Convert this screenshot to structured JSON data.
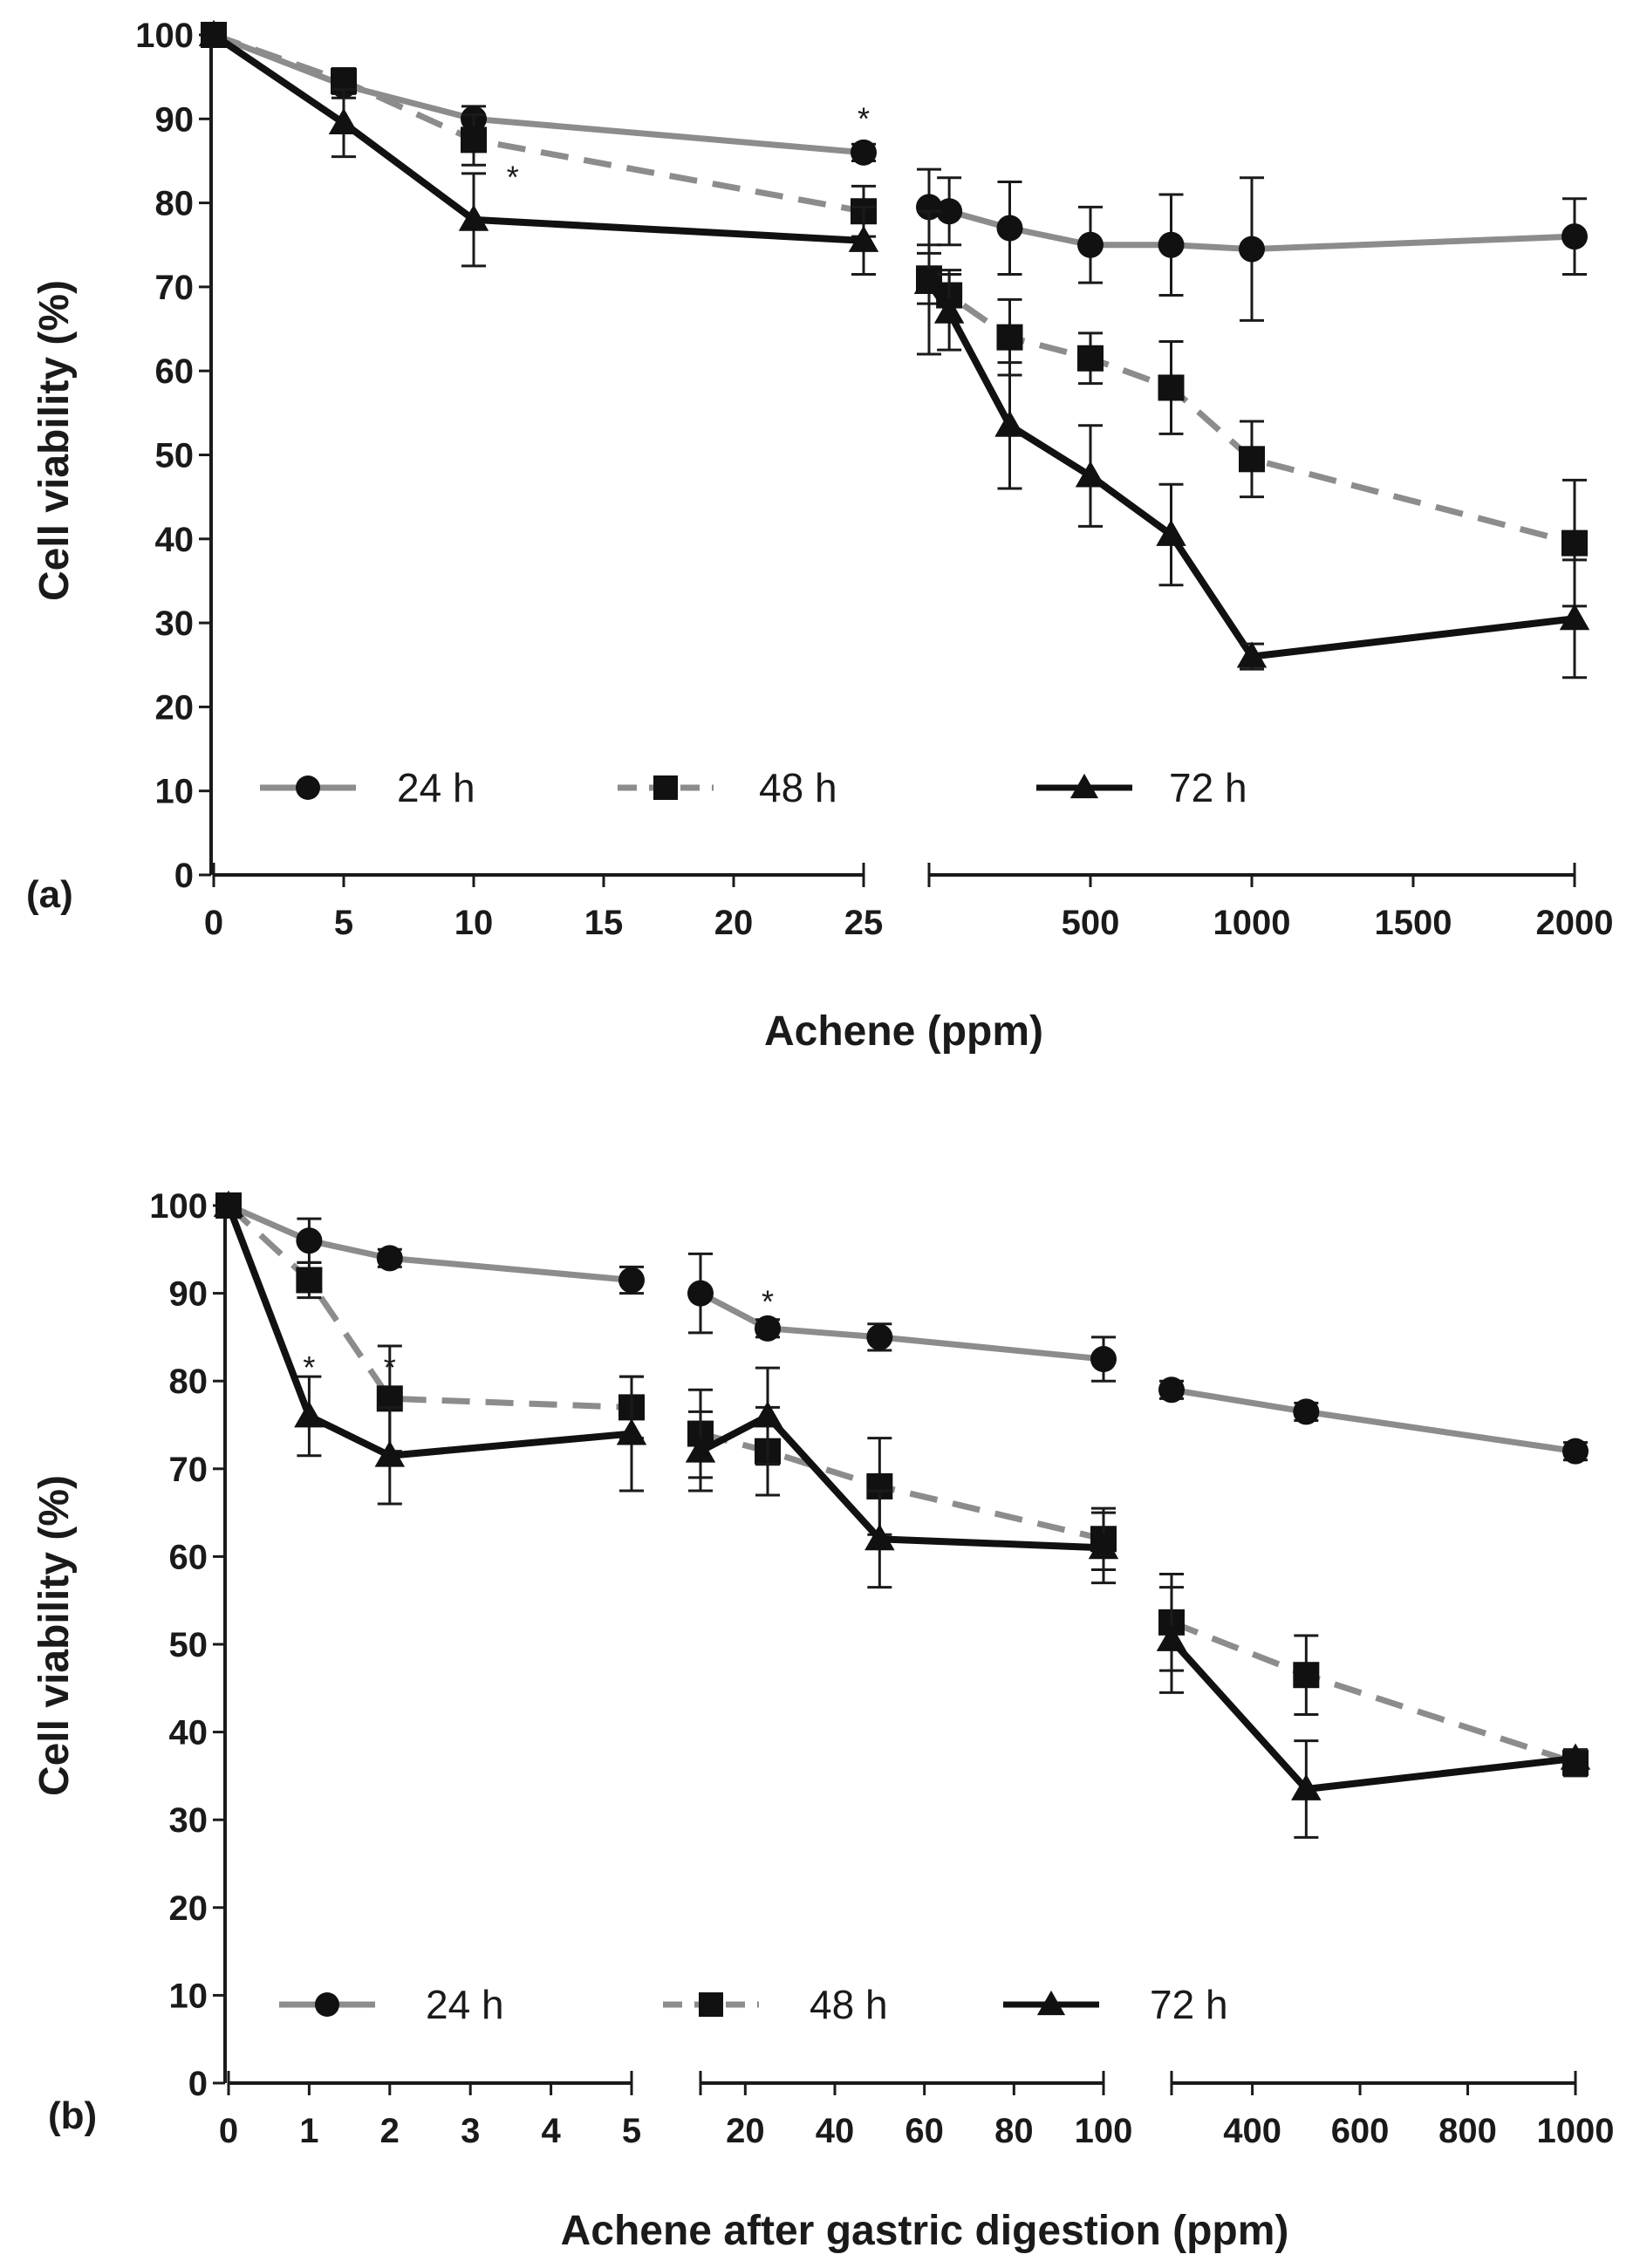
{
  "colors": {
    "s24": "#8c8c8c",
    "s48": "#8c8c8c",
    "s72": "#111111",
    "axis": "#1a1a1a"
  },
  "legend": [
    {
      "key": "s24",
      "label": "24 h",
      "marker": "circle",
      "dash": "solid"
    },
    {
      "key": "s48",
      "label": "48 h",
      "marker": "square",
      "dash": "dashed"
    },
    {
      "key": "s72",
      "label": "72 h",
      "marker": "triangle",
      "dash": "solid"
    }
  ],
  "chart_data": [
    {
      "panel": "(a)",
      "type": "line",
      "ylabel": "Cell viability (%)",
      "xlabel": "Achene (ppm)",
      "ylim": [
        0,
        100
      ],
      "yticks": [
        0,
        10,
        20,
        30,
        40,
        50,
        60,
        70,
        80,
        90,
        100
      ],
      "segments": [
        {
          "xlim": [
            0,
            25
          ],
          "ticks": [
            0,
            5,
            10,
            15,
            20,
            25
          ],
          "tick_labels": [
            "0",
            "5",
            "10",
            "15",
            "20",
            "25"
          ]
        },
        {
          "xlim": [
            0,
            2000
          ],
          "ticks": [
            0,
            500,
            1000,
            1500,
            2000
          ],
          "tick_labels": [
            "",
            "500",
            "1000",
            "1500",
            "2000"
          ]
        }
      ],
      "series": [
        {
          "name": "24 h",
          "key": "s24",
          "points": [
            {
              "seg": 0,
              "x": 0,
              "y": 100,
              "err": 0
            },
            {
              "seg": 0,
              "x": 5,
              "y": 94,
              "err": 1.5
            },
            {
              "seg": 0,
              "x": 10,
              "y": 90,
              "err": 1.5
            },
            {
              "seg": 0,
              "x": 25,
              "y": 86,
              "err": 1
            },
            {
              "seg": 1,
              "x": 0,
              "y": 79.5,
              "err": 4.5
            },
            {
              "seg": 1,
              "x": 62.5,
              "y": 79,
              "err": 4
            },
            {
              "seg": 1,
              "x": 250,
              "y": 77,
              "err": 5.5
            },
            {
              "seg": 1,
              "x": 500,
              "y": 75,
              "err": 4.5
            },
            {
              "seg": 1,
              "x": 750,
              "y": 75,
              "err": 6
            },
            {
              "seg": 1,
              "x": 1000,
              "y": 74.5,
              "err": 8.5
            },
            {
              "seg": 1,
              "x": 2000,
              "y": 76,
              "err": 4.5
            }
          ]
        },
        {
          "name": "48 h",
          "key": "s48",
          "points": [
            {
              "seg": 0,
              "x": 0,
              "y": 100,
              "err": 0
            },
            {
              "seg": 0,
              "x": 5,
              "y": 94.5,
              "err": 1.5
            },
            {
              "seg": 0,
              "x": 10,
              "y": 87.5,
              "err": 3
            },
            {
              "seg": 0,
              "x": 25,
              "y": 79,
              "err": 3
            },
            {
              "seg": 1,
              "x": 0,
              "y": 71,
              "err": 3
            },
            {
              "seg": 1,
              "x": 62.5,
              "y": 69,
              "err": 3
            },
            {
              "seg": 1,
              "x": 250,
              "y": 64,
              "err": 4.5
            },
            {
              "seg": 1,
              "x": 500,
              "y": 61.5,
              "err": 3
            },
            {
              "seg": 1,
              "x": 750,
              "y": 58,
              "err": 5.5
            },
            {
              "seg": 1,
              "x": 1000,
              "y": 49.5,
              "err": 4.5
            },
            {
              "seg": 1,
              "x": 2000,
              "y": 39.5,
              "err": 7.5
            }
          ]
        },
        {
          "name": "72 h",
          "key": "s72",
          "points": [
            {
              "seg": 0,
              "x": 0,
              "y": 100,
              "err": 0
            },
            {
              "seg": 0,
              "x": 5,
              "y": 89.5,
              "err": 4
            },
            {
              "seg": 0,
              "x": 10,
              "y": 78,
              "err": 5.5
            },
            {
              "seg": 0,
              "x": 25,
              "y": 75.5,
              "err": 4
            },
            {
              "seg": 1,
              "x": 0,
              "y": 70.5,
              "err": 8.5
            },
            {
              "seg": 1,
              "x": 62.5,
              "y": 67,
              "err": 4.5
            },
            {
              "seg": 1,
              "x": 250,
              "y": 53.5,
              "err": 7.5
            },
            {
              "seg": 1,
              "x": 500,
              "y": 47.5,
              "err": 6
            },
            {
              "seg": 1,
              "x": 750,
              "y": 40.5,
              "err": 6
            },
            {
              "seg": 1,
              "x": 1000,
              "y": 26,
              "err": 1.5
            },
            {
              "seg": 1,
              "x": 2000,
              "y": 30.5,
              "err": 7
            }
          ]
        }
      ],
      "annotations": [
        {
          "text": "*",
          "seg": 0,
          "x": 25,
          "y": 90
        },
        {
          "text": "*",
          "seg": 0,
          "x": 11.5,
          "y": 83
        }
      ]
    },
    {
      "panel": "(b)",
      "type": "line",
      "ylabel": "Cell viability (%)",
      "xlabel": "Achene after gastric digestion (ppm)",
      "ylim": [
        0,
        100
      ],
      "yticks": [
        0,
        10,
        20,
        30,
        40,
        50,
        60,
        70,
        80,
        90,
        100
      ],
      "segments": [
        {
          "xlim": [
            0,
            5
          ],
          "ticks": [
            0,
            1,
            2,
            3,
            4,
            5
          ],
          "tick_labels": [
            "0",
            "1",
            "2",
            "3",
            "4",
            "5"
          ]
        },
        {
          "xlim": [
            10,
            100
          ],
          "ticks": [
            10,
            20,
            40,
            60,
            80,
            100
          ],
          "tick_labels": [
            "",
            "20",
            "40",
            "60",
            "80",
            "100"
          ]
        },
        {
          "xlim": [
            250,
            1000
          ],
          "ticks": [
            250,
            400,
            600,
            800,
            1000
          ],
          "tick_labels": [
            "",
            "400",
            "600",
            "800",
            "1000"
          ]
        }
      ],
      "series": [
        {
          "name": "24 h",
          "key": "s24",
          "points": [
            {
              "seg": 0,
              "x": 0,
              "y": 100,
              "err": 0
            },
            {
              "seg": 0,
              "x": 1,
              "y": 96,
              "err": 2.5
            },
            {
              "seg": 0,
              "x": 2,
              "y": 94,
              "err": 1
            },
            {
              "seg": 0,
              "x": 5,
              "y": 91.5,
              "err": 1.5
            },
            {
              "seg": 1,
              "x": 10,
              "y": 90,
              "err": 4.5
            },
            {
              "seg": 1,
              "x": 25,
              "y": 86,
              "err": 1
            },
            {
              "seg": 1,
              "x": 50,
              "y": 85,
              "err": 1.5
            },
            {
              "seg": 1,
              "x": 100,
              "y": 82.5,
              "err": 2.5
            },
            {
              "seg": 2,
              "x": 250,
              "y": 79,
              "err": 1
            },
            {
              "seg": 2,
              "x": 500,
              "y": 76.5,
              "err": 1
            },
            {
              "seg": 2,
              "x": 1000,
              "y": 72,
              "err": 1
            }
          ]
        },
        {
          "name": "48 h",
          "key": "s48",
          "points": [
            {
              "seg": 0,
              "x": 0,
              "y": 100,
              "err": 0
            },
            {
              "seg": 0,
              "x": 1,
              "y": 91.5,
              "err": 2
            },
            {
              "seg": 0,
              "x": 2,
              "y": 78,
              "err": 6
            },
            {
              "seg": 0,
              "x": 5,
              "y": 77,
              "err": 3.5
            },
            {
              "seg": 1,
              "x": 10,
              "y": 74,
              "err": 5
            },
            {
              "seg": 1,
              "x": 25,
              "y": 72,
              "err": 5
            },
            {
              "seg": 1,
              "x": 50,
              "y": 68,
              "err": 5.5
            },
            {
              "seg": 1,
              "x": 100,
              "y": 62,
              "err": 3.5
            },
            {
              "seg": 2,
              "x": 250,
              "y": 52.5,
              "err": 5.5
            },
            {
              "seg": 2,
              "x": 500,
              "y": 46.5,
              "err": 4.5
            },
            {
              "seg": 2,
              "x": 1000,
              "y": 36.5,
              "err": 1.5
            }
          ]
        },
        {
          "name": "72 h",
          "key": "s72",
          "points": [
            {
              "seg": 0,
              "x": 0,
              "y": 100,
              "err": 0
            },
            {
              "seg": 0,
              "x": 1,
              "y": 76,
              "err": 4.5
            },
            {
              "seg": 0,
              "x": 2,
              "y": 71.5,
              "err": 5.5
            },
            {
              "seg": 0,
              "x": 5,
              "y": 74,
              "err": 6.5
            },
            {
              "seg": 1,
              "x": 10,
              "y": 72,
              "err": 4.5
            },
            {
              "seg": 1,
              "x": 25,
              "y": 76,
              "err": 5.5
            },
            {
              "seg": 1,
              "x": 50,
              "y": 62,
              "err": 5.5
            },
            {
              "seg": 1,
              "x": 100,
              "y": 61,
              "err": 4
            },
            {
              "seg": 2,
              "x": 250,
              "y": 50.5,
              "err": 6
            },
            {
              "seg": 2,
              "x": 500,
              "y": 33.5,
              "err": 5.5
            },
            {
              "seg": 2,
              "x": 1000,
              "y": 37,
              "err": 1
            }
          ]
        }
      ],
      "annotations": [
        {
          "text": "*",
          "seg": 0,
          "x": 1,
          "y": 81.5
        },
        {
          "text": "*",
          "seg": 0,
          "x": 2,
          "y": 81.5
        },
        {
          "text": "*",
          "seg": 1,
          "x": 25,
          "y": 89
        }
      ]
    }
  ]
}
